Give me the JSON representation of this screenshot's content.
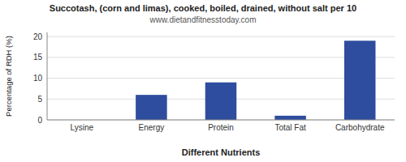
{
  "chart_data": {
    "type": "bar",
    "title": "Succotash, (corn and limas), cooked, boiled, drained, without salt per 10",
    "subtitle": "www.dietandfitnesstoday.com",
    "categories": [
      "Lysine",
      "Energy",
      "Protein",
      "Total Fat",
      "Carbohydrate"
    ],
    "values": [
      0,
      6,
      9,
      1,
      19
    ],
    "color": "#2e4d9e",
    "xlabel": "Different Nutrients",
    "ylabel": "Percentage of RDH (%)",
    "ylim": [
      0,
      21
    ],
    "yticks": [
      0,
      5,
      10,
      15,
      20
    ],
    "grid": true
  }
}
